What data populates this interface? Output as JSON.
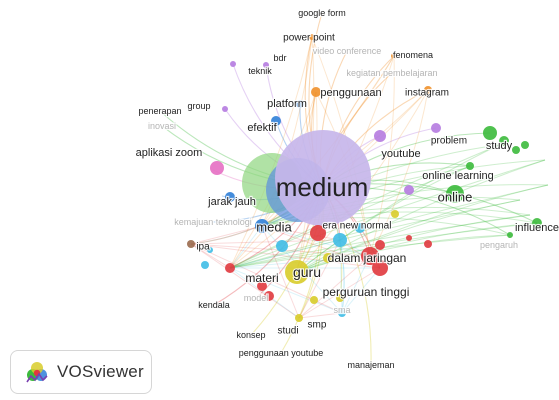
{
  "brand": {
    "name": "VOSviewer"
  },
  "clusters": {
    "red": "#e0393e",
    "green": "#3cba3c",
    "blue": "#2f7fd8",
    "yellow": "#d8cc2a",
    "purple": "#b57be0",
    "cyan": "#3fbde6",
    "orange": "#f0902a",
    "brown": "#9a6a4e",
    "pink": "#e66fc3"
  },
  "network": {
    "center_term": "medium",
    "nodes": [
      {
        "label": "medium",
        "cluster": "purple",
        "weight": 1.0,
        "bold": true
      },
      {
        "label": "online",
        "cluster": "green",
        "weight": 0.35,
        "bold": true
      },
      {
        "label": "media",
        "cluster": "blue",
        "weight": 0.35,
        "bold": true
      },
      {
        "label": "guru",
        "cluster": "yellow",
        "weight": 0.4,
        "bold": true
      },
      {
        "label": "dalam jaringan",
        "cluster": "red",
        "weight": 0.3
      },
      {
        "label": "perguruan tinggi",
        "cluster": "red",
        "weight": 0.28
      },
      {
        "label": "materi",
        "cluster": "red",
        "weight": 0.28
      },
      {
        "label": "study",
        "cluster": "green",
        "weight": 0.22
      },
      {
        "label": "online learning",
        "cluster": "green",
        "weight": 0.2
      },
      {
        "label": "youtube",
        "cluster": "purple",
        "weight": 0.2
      },
      {
        "label": "influence",
        "cluster": "green",
        "weight": 0.18
      },
      {
        "label": "pengaruh",
        "cluster": "green",
        "weight": 0.1,
        "faint": true
      },
      {
        "label": "problem",
        "cluster": "purple",
        "weight": 0.12
      },
      {
        "label": "jarak jauh",
        "cluster": "blue",
        "weight": 0.22
      },
      {
        "label": "aplikasi zoom",
        "cluster": "pink",
        "weight": 0.18
      },
      {
        "label": "efektif",
        "cluster": "blue",
        "weight": 0.18
      },
      {
        "label": "platform",
        "cluster": "blue",
        "weight": 0.2
      },
      {
        "label": "penggunaan",
        "cluster": "orange",
        "weight": 0.22
      },
      {
        "label": "instagram",
        "cluster": "orange",
        "weight": 0.16
      },
      {
        "label": "google form",
        "cluster": "orange",
        "weight": 0.1
      },
      {
        "label": "power point",
        "cluster": "orange",
        "weight": 0.14
      },
      {
        "label": "video conference",
        "cluster": "orange",
        "weight": 0.08,
        "faint": true
      },
      {
        "label": "fenomena",
        "cluster": "orange",
        "weight": 0.1
      },
      {
        "label": "kegiatan pembelajaran",
        "cluster": "orange",
        "weight": 0.08,
        "faint": true
      },
      {
        "label": "bdr",
        "cluster": "purple",
        "weight": 0.1
      },
      {
        "label": "teknik",
        "cluster": "purple",
        "weight": 0.1
      },
      {
        "label": "group",
        "cluster": "purple",
        "weight": 0.1
      },
      {
        "label": "penerapan",
        "cluster": "green",
        "weight": 0.1
      },
      {
        "label": "inovasi",
        "cluster": "green",
        "weight": 0.08,
        "faint": true
      },
      {
        "label": "kemajuan teknologi",
        "cluster": "blue",
        "weight": 0.1,
        "faint": true
      },
      {
        "label": "era new normal",
        "cluster": "red",
        "weight": 0.12
      },
      {
        "label": "ipa",
        "cluster": "brown",
        "weight": 0.12
      },
      {
        "label": "kendala",
        "cluster": "red",
        "weight": 0.1
      },
      {
        "label": "konsep",
        "cluster": "yellow",
        "weight": 0.1
      },
      {
        "label": "studi",
        "cluster": "yellow",
        "weight": 0.12
      },
      {
        "label": "smp",
        "cluster": "cyan",
        "weight": 0.14
      },
      {
        "label": "sma",
        "cluster": "yellow",
        "weight": 0.1,
        "faint": true
      },
      {
        "label": "penggunaan youtube",
        "cluster": "yellow",
        "weight": 0.1
      },
      {
        "label": "manajeman",
        "cluster": "yellow",
        "weight": 0.1
      },
      {
        "label": "model",
        "cluster": "red",
        "weight": 0.08,
        "faint": true
      }
    ]
  }
}
